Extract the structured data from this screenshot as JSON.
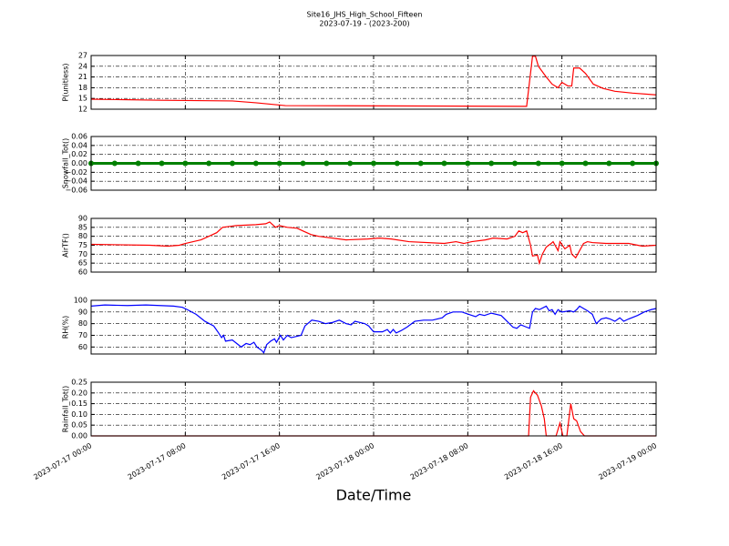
{
  "chart_data": [
    {
      "type": "line",
      "title": "Site16_JHS_High_School_Fifteen",
      "subtitle": "2023-07-19 - (2023-200)",
      "ylabel": "P(unitless)",
      "color": "#ff0000",
      "grid": true,
      "xlim": [
        "2023-07-17 00:00",
        "2023-07-19 00:00"
      ],
      "xticks": [
        "2023-07-17 00:00",
        "2023-07-17 08:00",
        "2023-07-17 16:00",
        "2023-07-18 00:00",
        "2023-07-18 08:00",
        "2023-07-18 16:00",
        "2023-07-19 00:00"
      ],
      "ylim": [
        12,
        27
      ],
      "yticks": [
        12,
        15,
        18,
        21,
        24,
        27
      ],
      "x": [
        "2023-07-17 00:00",
        "2023-07-17 06:00",
        "2023-07-17 12:00",
        "2023-07-17 14:00",
        "2023-07-17 16:30",
        "2023-07-18 13:00",
        "2023-07-18 13:30",
        "2023-07-18 13:45",
        "2023-07-18 14:00",
        "2023-07-18 14:40",
        "2023-07-18 15:10",
        "2023-07-18 15:40",
        "2023-07-18 16:00",
        "2023-07-18 16:30",
        "2023-07-18 16:50",
        "2023-07-18 17:00",
        "2023-07-18 17:30",
        "2023-07-18 18:00",
        "2023-07-18 18:40",
        "2023-07-18 19:30",
        "2023-07-18 20:30",
        "2023-07-18 22:00",
        "2023-07-19 00:00"
      ],
      "values": [
        14.8,
        14.5,
        14.3,
        13.8,
        13.0,
        12.8,
        26.8,
        26.8,
        24,
        21,
        19,
        18,
        19.5,
        18.5,
        18.5,
        23.5,
        23.5,
        22,
        19,
        17.8,
        17,
        16.5,
        16.0
      ]
    },
    {
      "type": "line",
      "ylabel": "Snowfall_Tot()",
      "color": "#008000",
      "marker": "o",
      "grid": true,
      "xlim": [
        "2023-07-17 00:00",
        "2023-07-19 00:00"
      ],
      "xticks": [
        "2023-07-17 00:00",
        "2023-07-17 08:00",
        "2023-07-17 16:00",
        "2023-07-18 00:00",
        "2023-07-18 08:00",
        "2023-07-18 16:00",
        "2023-07-19 00:00"
      ],
      "ylim": [
        -0.06,
        0.06
      ],
      "yticks": [
        {
          "value": -0.06,
          "label": "−0.06"
        },
        {
          "value": -0.04,
          "label": "−0.04"
        },
        {
          "value": -0.02,
          "label": "−0.02"
        },
        {
          "value": 0,
          "label": "0.00"
        },
        0.02,
        0.04,
        0.06
      ],
      "x": [
        "2023-07-17 00:00",
        "2023-07-17 02:00",
        "2023-07-17 04:00",
        "2023-07-17 06:00",
        "2023-07-17 08:00",
        "2023-07-17 10:00",
        "2023-07-17 12:00",
        "2023-07-17 14:00",
        "2023-07-17 16:00",
        "2023-07-17 18:00",
        "2023-07-17 20:00",
        "2023-07-17 22:00",
        "2023-07-18 00:00",
        "2023-07-18 02:00",
        "2023-07-18 04:00",
        "2023-07-18 06:00",
        "2023-07-18 08:00",
        "2023-07-18 10:00",
        "2023-07-18 12:00",
        "2023-07-18 14:00",
        "2023-07-18 16:00",
        "2023-07-18 18:00",
        "2023-07-18 20:00",
        "2023-07-18 22:00",
        "2023-07-19 00:00"
      ],
      "values": [
        0,
        0,
        0,
        0,
        0,
        0,
        0,
        0,
        0,
        0,
        0,
        0,
        0,
        0,
        0,
        0,
        0,
        0,
        0,
        0,
        0,
        0,
        0,
        0,
        0
      ]
    },
    {
      "type": "line",
      "ylabel": "AirTF()",
      "color": "#ff0000",
      "grid": true,
      "xlim": [
        "2023-07-17 00:00",
        "2023-07-19 00:00"
      ],
      "xticks": [
        "2023-07-17 00:00",
        "2023-07-17 08:00",
        "2023-07-17 16:00",
        "2023-07-18 00:00",
        "2023-07-18 08:00",
        "2023-07-18 16:00",
        "2023-07-19 00:00"
      ],
      "ylim": [
        60,
        90
      ],
      "yticks": [
        60,
        65,
        70,
        75,
        80,
        85,
        90
      ],
      "x": [
        "2023-07-17 00:00",
        "2023-07-17 05:00",
        "2023-07-17 06:30",
        "2023-07-17 07:30",
        "2023-07-17 08:00",
        "2023-07-17 09:20",
        "2023-07-17 10:00",
        "2023-07-17 10:40",
        "2023-07-17 11:10",
        "2023-07-17 12:20",
        "2023-07-17 14:00",
        "2023-07-17 14:50",
        "2023-07-17 15:10",
        "2023-07-17 15:40",
        "2023-07-17 16:00",
        "2023-07-17 16:40",
        "2023-07-17 17:30",
        "2023-07-17 18:00",
        "2023-07-17 18:40",
        "2023-07-17 19:20",
        "2023-07-17 21:40",
        "2023-07-17 23:30",
        "2023-07-18 00:30",
        "2023-07-18 01:30",
        "2023-07-18 03:00",
        "2023-07-18 06:00",
        "2023-07-18 07:00",
        "2023-07-18 07:40",
        "2023-07-18 08:20",
        "2023-07-18 09:30",
        "2023-07-18 10:10",
        "2023-07-18 11:20",
        "2023-07-18 12:00",
        "2023-07-18 12:20",
        "2023-07-18 12:40",
        "2023-07-18 13:00",
        "2023-07-18 13:20",
        "2023-07-18 13:30",
        "2023-07-18 13:55",
        "2023-07-18 14:05",
        "2023-07-18 14:20",
        "2023-07-18 14:40",
        "2023-07-18 15:05",
        "2023-07-18 15:15",
        "2023-07-18 15:30",
        "2023-07-18 15:40",
        "2023-07-18 15:50",
        "2023-07-18 16:15",
        "2023-07-18 16:40",
        "2023-07-18 16:50",
        "2023-07-18 17:10",
        "2023-07-18 17:30",
        "2023-07-18 17:50",
        "2023-07-18 18:10",
        "2023-07-18 18:35",
        "2023-07-18 19:45",
        "2023-07-18 21:40",
        "2023-07-18 22:50",
        "2023-07-19 00:00"
      ],
      "values": [
        75.5,
        75,
        74.5,
        75,
        76,
        78,
        80,
        82,
        85,
        86,
        86.5,
        87,
        88,
        85,
        86,
        85,
        84.5,
        83,
        81,
        80,
        78,
        78.5,
        79,
        78.5,
        77,
        76,
        77,
        76,
        77,
        78,
        79,
        78.5,
        80,
        83,
        82,
        83,
        75,
        69,
        69.5,
        65,
        70,
        74,
        76,
        77,
        74,
        72,
        77,
        73,
        75,
        70,
        68,
        72,
        76,
        77,
        76.5,
        76,
        76,
        74.5,
        75
      ]
    },
    {
      "type": "line",
      "ylabel": "RH(%)",
      "color": "#0000ff",
      "grid": true,
      "xlim": [
        "2023-07-17 00:00",
        "2023-07-19 00:00"
      ],
      "xticks": [
        "2023-07-17 00:00",
        "2023-07-17 08:00",
        "2023-07-17 16:00",
        "2023-07-18 00:00",
        "2023-07-18 08:00",
        "2023-07-18 16:00",
        "2023-07-19 00:00"
      ],
      "ylim": [
        54,
        100
      ],
      "yticks": [
        60,
        70,
        80,
        90,
        100
      ],
      "x": [
        "2023-07-17 00:00",
        "2023-07-17 01:10",
        "2023-07-17 03:05",
        "2023-07-17 04:40",
        "2023-07-17 07:00",
        "2023-07-17 07:45",
        "2023-07-17 08:10",
        "2023-07-17 08:55",
        "2023-07-17 09:40",
        "2023-07-17 10:25",
        "2023-07-17 10:50",
        "2023-07-17 11:05",
        "2023-07-17 11:15",
        "2023-07-17 11:25",
        "2023-07-17 12:00",
        "2023-07-17 12:30",
        "2023-07-17 12:45",
        "2023-07-17 13:10",
        "2023-07-17 13:30",
        "2023-07-17 13:50",
        "2023-07-17 14:05",
        "2023-07-17 14:30",
        "2023-07-17 14:40",
        "2023-07-17 14:55",
        "2023-07-17 15:15",
        "2023-07-17 15:35",
        "2023-07-17 15:45",
        "2023-07-17 16:05",
        "2023-07-17 16:20",
        "2023-07-17 16:40",
        "2023-07-17 17:00",
        "2023-07-17 17:50",
        "2023-07-17 18:10",
        "2023-07-17 18:45",
        "2023-07-17 19:20",
        "2023-07-17 19:55",
        "2023-07-17 20:30",
        "2023-07-17 21:05",
        "2023-07-17 21:40",
        "2023-07-17 22:05",
        "2023-07-17 22:25",
        "2023-07-17 23:15",
        "2023-07-17 23:35",
        "2023-07-18 00:00",
        "2023-07-18 00:45",
        "2023-07-18 01:10",
        "2023-07-18 01:25",
        "2023-07-18 01:40",
        "2023-07-18 01:55",
        "2023-07-18 02:20",
        "2023-07-18 02:50",
        "2023-07-18 03:30",
        "2023-07-18 04:15",
        "2023-07-18 05:00",
        "2023-07-18 05:50",
        "2023-07-18 06:10",
        "2023-07-18 06:45",
        "2023-07-18 07:30",
        "2023-07-18 08:05",
        "2023-07-18 08:40",
        "2023-07-18 09:00",
        "2023-07-18 09:25",
        "2023-07-18 10:00",
        "2023-07-18 10:50",
        "2023-07-18 11:20",
        "2023-07-18 11:50",
        "2023-07-18 12:10",
        "2023-07-18 12:30",
        "2023-07-18 13:00",
        "2023-07-18 13:15",
        "2023-07-18 13:30",
        "2023-07-18 13:45",
        "2023-07-18 14:05",
        "2023-07-18 14:40",
        "2023-07-18 14:55",
        "2023-07-18 15:10",
        "2023-07-18 15:25",
        "2023-07-18 15:40",
        "2023-07-18 16:00",
        "2023-07-18 16:40",
        "2023-07-18 17:00",
        "2023-07-18 17:15",
        "2023-07-18 17:30",
        "2023-07-18 17:50",
        "2023-07-18 18:10",
        "2023-07-18 18:35",
        "2023-07-18 18:55",
        "2023-07-18 19:20",
        "2023-07-18 19:45",
        "2023-07-18 20:05",
        "2023-07-18 20:30",
        "2023-07-18 20:55",
        "2023-07-18 21:15",
        "2023-07-18 21:40",
        "2023-07-18 22:25",
        "2023-07-18 23:00",
        "2023-07-18 23:35",
        "2023-07-19 00:00"
      ],
      "values": [
        95,
        96,
        95.5,
        96,
        95,
        94,
        92,
        88,
        82,
        78,
        72,
        68,
        70,
        65,
        66,
        62,
        60,
        63,
        62,
        64,
        60,
        57,
        55,
        62,
        65,
        67,
        64,
        70,
        66,
        70,
        68,
        70,
        78,
        83,
        82,
        80,
        81,
        83,
        80,
        79,
        82,
        80,
        78,
        73,
        73,
        75,
        72,
        75,
        72,
        74,
        77,
        82,
        83,
        83,
        85,
        88,
        90,
        90,
        88,
        86,
        88,
        87,
        89,
        87,
        82,
        77,
        76,
        79,
        77,
        76,
        90,
        93,
        92,
        95,
        91,
        92,
        88,
        92,
        90,
        91,
        90,
        92,
        95,
        93,
        91,
        88,
        80,
        84,
        85,
        84,
        82,
        85,
        82,
        84,
        87,
        90,
        92,
        93
      ]
    },
    {
      "type": "line",
      "ylabel": "Rainfall_Tot()",
      "xlabel": "Date/Time",
      "color": "#ff0000",
      "grid": true,
      "xlim": [
        "2023-07-17 00:00",
        "2023-07-19 00:00"
      ],
      "xticks": [
        "2023-07-17 00:00",
        "2023-07-17 08:00",
        "2023-07-17 16:00",
        "2023-07-18 00:00",
        "2023-07-18 08:00",
        "2023-07-18 16:00",
        "2023-07-19 00:00"
      ],
      "ylim": [
        0,
        0.25
      ],
      "yticks": [
        {
          "value": 0,
          "label": "0.00"
        },
        0.05,
        {
          "value": 0.1,
          "label": "0.10"
        },
        0.15,
        {
          "value": 0.2,
          "label": "0.20"
        },
        0.25
      ],
      "x": [
        "2023-07-17 00:00",
        "2023-07-18 13:10",
        "2023-07-18 13:20",
        "2023-07-18 13:35",
        "2023-07-18 13:55",
        "2023-07-18 14:15",
        "2023-07-18 14:30",
        "2023-07-18 14:40",
        "2023-07-18 15:30",
        "2023-07-18 15:50",
        "2023-07-18 16:05",
        "2023-07-18 16:25",
        "2023-07-18 16:45",
        "2023-07-18 17:00",
        "2023-07-18 17:15",
        "2023-07-18 17:35",
        "2023-07-18 17:55",
        "2023-07-19 00:00"
      ],
      "values": [
        0,
        0,
        0.18,
        0.21,
        0.19,
        0.14,
        0.08,
        0,
        0,
        0.06,
        0,
        0,
        0.15,
        0.08,
        0.07,
        0.02,
        0,
        0
      ]
    }
  ]
}
